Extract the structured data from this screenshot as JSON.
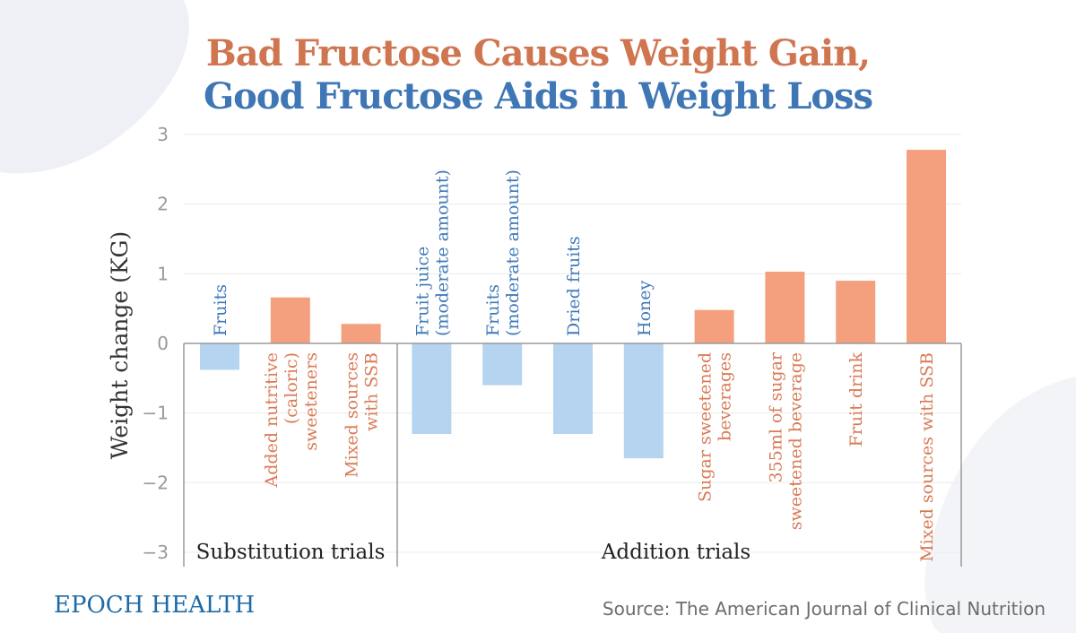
{
  "title_line1": "Bad Fructose Causes Weight Gain,",
  "title_line2": "Good Fructose Aids in Weight Loss",
  "brand": "EPOCH HEALTH",
  "source": "Source: The American Journal of Clinical Nutrition",
  "colors": {
    "bad": "#f4a07f",
    "good": "#b5d4ef",
    "bad_text": "#d97a55",
    "good_text": "#3f78b9",
    "title_bad": "#cf7550",
    "title_good": "#3f76b5",
    "axis": "#9a9a9a",
    "grid": "#ececec"
  },
  "chart_data": {
    "type": "bar",
    "ylabel": "Weight change (KG)",
    "ylim": [
      -3,
      3
    ],
    "yticks": [
      "3",
      "2",
      "1",
      "0",
      "−1",
      "−2",
      "−3"
    ],
    "grid": true,
    "groups": [
      {
        "label": "Substitution trials",
        "start": 0,
        "end": 2
      },
      {
        "label": "Addition trials",
        "start": 3,
        "end": 10
      }
    ],
    "categories": [
      {
        "lines": [
          "Fruits"
        ],
        "value": -0.38,
        "kind": "good"
      },
      {
        "lines": [
          "Added nutritive",
          "(caloric)",
          "sweeteners"
        ],
        "value": 0.66,
        "kind": "bad"
      },
      {
        "lines": [
          "Mixed sources",
          "with SSB"
        ],
        "value": 0.28,
        "kind": "bad"
      },
      {
        "lines": [
          "Fruit juice",
          "(moderate amount)"
        ],
        "value": -1.3,
        "kind": "good"
      },
      {
        "lines": [
          "Fruits",
          "(moderate amount)"
        ],
        "value": -0.6,
        "kind": "good"
      },
      {
        "lines": [
          "Dried fruits"
        ],
        "value": -1.3,
        "kind": "good"
      },
      {
        "lines": [
          "Honey"
        ],
        "value": -1.65,
        "kind": "good"
      },
      {
        "lines": [
          "Sugar sweetened",
          "beverages"
        ],
        "value": 0.48,
        "kind": "bad"
      },
      {
        "lines": [
          "355ml of sugar",
          "sweetened beverage"
        ],
        "value": 1.03,
        "kind": "bad"
      },
      {
        "lines": [
          "Fruit drink"
        ],
        "value": 0.9,
        "kind": "bad"
      },
      {
        "lines": [
          "Mixed sources with SSB"
        ],
        "value": 2.78,
        "kind": "bad"
      }
    ]
  }
}
